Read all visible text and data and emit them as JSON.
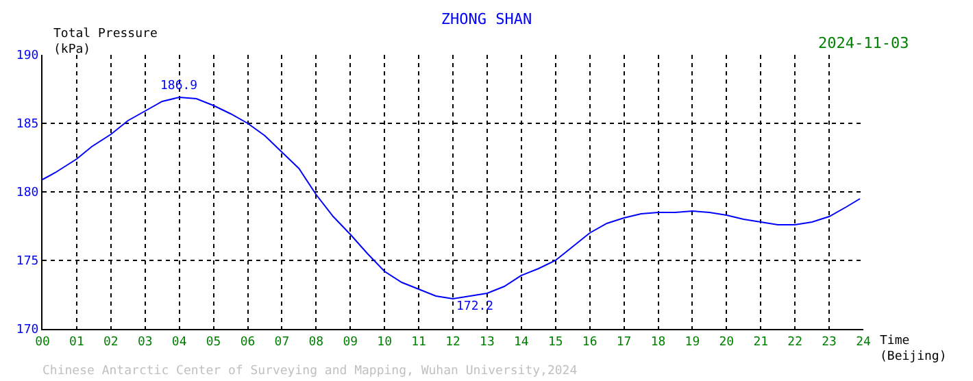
{
  "chart_data": {
    "type": "line",
    "title": "ZHONG SHAN",
    "xlabel": "Time\n(Beijing)",
    "ylabel": "Total Pressure\n(kPa)",
    "x": [
      0,
      0.37,
      1,
      1.44,
      2,
      2.5,
      3,
      3.5,
      4,
      4.5,
      5,
      5.5,
      6,
      6.5,
      7,
      7.5,
      8,
      8.5,
      9,
      9.5,
      10,
      10.5,
      11,
      11.5,
      12,
      12.5,
      13,
      13.5,
      14,
      14.5,
      15,
      15.5,
      16,
      16.5,
      17,
      17.5,
      18,
      18.5,
      19,
      19.5,
      20,
      20.5,
      21,
      21.5,
      22,
      22.5,
      23,
      23.5,
      23.9
    ],
    "series": [
      {
        "color": "#0000ff",
        "values": [
          180.9,
          181.4,
          182.4,
          183.3,
          184.2,
          185.2,
          185.9,
          186.6,
          186.9,
          186.8,
          186.3,
          185.7,
          185.0,
          184.1,
          182.9,
          181.7,
          179.8,
          178.2,
          176.9,
          175.5,
          174.2,
          173.4,
          172.9,
          172.4,
          172.2,
          172.4,
          172.6,
          173.1,
          173.9,
          174.4,
          175.0,
          176.0,
          177.0,
          177.7,
          178.1,
          178.4,
          178.5,
          178.5,
          178.6,
          178.5,
          178.3,
          178.0,
          177.8,
          177.6,
          177.6,
          177.8,
          178.2,
          178.9,
          179.5
        ]
      }
    ],
    "xlim": [
      0,
      24
    ],
    "ylim": [
      170,
      190
    ],
    "xticks": [
      {
        "value": 0,
        "label": "00"
      },
      {
        "value": 1,
        "label": "01"
      },
      {
        "value": 2,
        "label": "02"
      },
      {
        "value": 3,
        "label": "03"
      },
      {
        "value": 4,
        "label": "04"
      },
      {
        "value": 5,
        "label": "05"
      },
      {
        "value": 6,
        "label": "06"
      },
      {
        "value": 7,
        "label": "07"
      },
      {
        "value": 8,
        "label": "08"
      },
      {
        "value": 9,
        "label": "09"
      },
      {
        "value": 10,
        "label": "10"
      },
      {
        "value": 11,
        "label": "11"
      },
      {
        "value": 12,
        "label": "12"
      },
      {
        "value": 13,
        "label": "13"
      },
      {
        "value": 14,
        "label": "14"
      },
      {
        "value": 15,
        "label": "15"
      },
      {
        "value": 16,
        "label": "16"
      },
      {
        "value": 17,
        "label": "17"
      },
      {
        "value": 18,
        "label": "18"
      },
      {
        "value": 19,
        "label": "19"
      },
      {
        "value": 20,
        "label": "20"
      },
      {
        "value": 21,
        "label": "21"
      },
      {
        "value": 22,
        "label": "22"
      },
      {
        "value": 23,
        "label": "23"
      },
      {
        "value": 24,
        "label": "24"
      }
    ],
    "yticks": [
      170,
      175,
      180,
      185,
      190
    ],
    "annotations": [
      {
        "text": "186.9",
        "x": 4,
        "y": 186.9
      },
      {
        "text": "172.2",
        "x": 12,
        "y": 172.2
      },
      "2024-11-03",
      "Chinese Antarctic Center of Surveying and Mapping, Wuhan University,2024"
    ],
    "grid": true,
    "marker": "none",
    "line_style": "solid"
  }
}
